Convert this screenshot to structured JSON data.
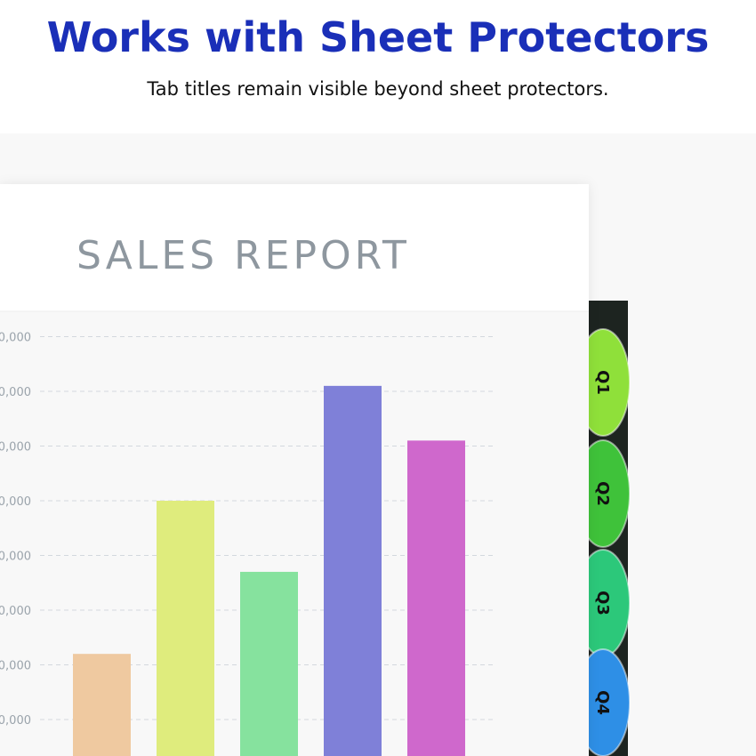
{
  "header": {
    "title": "Works with Sheet Protectors",
    "subtitle": "Tab titles remain visible beyond sheet protectors."
  },
  "chart_data": {
    "type": "bar",
    "title": "SALES REPORT",
    "categories": [
      null,
      null,
      null,
      null,
      null
    ],
    "values": [
      2.2,
      5.0,
      3.7,
      7.1,
      6.1
    ],
    "colors": [
      "#efc9a0",
      "#dfec7d",
      "#86e29e",
      "#7f80d8",
      "#cf68cc"
    ],
    "ylim": [
      0,
      8
    ],
    "yticks": [
      {
        "value": 1,
        "label": "0,000"
      },
      {
        "value": 2,
        "label": "0,000"
      },
      {
        "value": 3,
        "label": "0,000"
      },
      {
        "value": 4,
        "label": "0,000"
      },
      {
        "value": 5,
        "label": "0,000"
      },
      {
        "value": 6,
        "label": "0,000"
      },
      {
        "value": 7,
        "label": "0,000"
      },
      {
        "value": 8,
        "label": "0,000"
      }
    ],
    "grid": true
  },
  "tabs": [
    "Q1",
    "Q2",
    "Q3",
    "Q4"
  ]
}
